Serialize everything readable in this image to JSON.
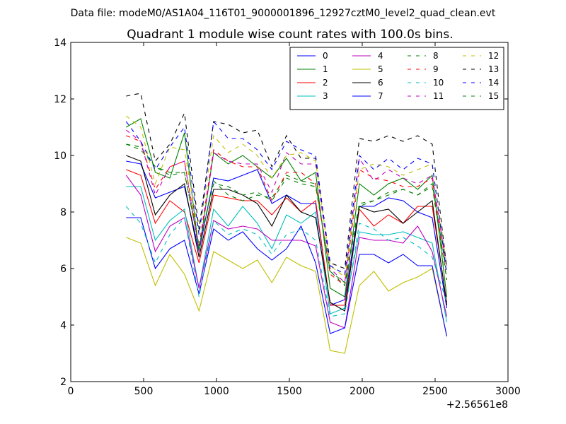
{
  "chart_data": {
    "type": "line",
    "suptitle": "Data file: modeM0/AS1A04_116T01_9000001896_12927cztM0_level2_quad_clean.evt",
    "title": "Quadrant 1 module wise count rates with 100.0s bins.",
    "xlabel": "",
    "ylabel": "",
    "x_offset_label": "+2.56561e8",
    "xlim": [
      0,
      3000
    ],
    "ylim": [
      2,
      14
    ],
    "x_ticks": [
      0,
      500,
      1000,
      1500,
      2000,
      2500,
      3000
    ],
    "y_ticks": [
      2,
      4,
      6,
      8,
      10,
      12,
      14
    ],
    "grid": false,
    "legend_placement": "upper-right",
    "legend_columns": 4,
    "x": [
      380,
      480,
      580,
      680,
      780,
      880,
      980,
      1080,
      1180,
      1280,
      1380,
      1480,
      1580,
      1680,
      1780,
      1880,
      1980,
      2080,
      2180,
      2280,
      2380,
      2480,
      2580
    ],
    "series": [
      {
        "name": "0",
        "color": "#0000ff",
        "dash": false,
        "values": [
          9.8,
          9.7,
          8.5,
          8.7,
          8.9,
          6.6,
          9.2,
          9.1,
          9.3,
          9.5,
          8.3,
          8.6,
          8.3,
          8.3,
          4.7,
          4.9,
          8.2,
          8.2,
          8.5,
          8.4,
          8.0,
          7.8,
          4.6
        ]
      },
      {
        "name": "1",
        "color": "#008000",
        "dash": false,
        "values": [
          11.0,
          11.3,
          9.4,
          9.2,
          10.8,
          6.6,
          10.1,
          9.7,
          10.0,
          9.6,
          9.2,
          9.9,
          9.1,
          9.4,
          5.3,
          5.0,
          9.0,
          8.6,
          9.0,
          9.2,
          8.8,
          9.3,
          5.0
        ]
      },
      {
        "name": "2",
        "color": "#ff0000",
        "dash": false,
        "values": [
          9.5,
          9.3,
          7.6,
          8.4,
          8.0,
          6.2,
          8.6,
          8.5,
          8.4,
          8.4,
          7.9,
          8.5,
          8.0,
          8.4,
          4.7,
          4.7,
          8.1,
          7.5,
          7.9,
          7.6,
          8.2,
          8.2,
          4.8
        ]
      },
      {
        "name": "3",
        "color": "#00bfbf",
        "dash": false,
        "values": [
          8.9,
          8.9,
          7.0,
          7.7,
          8.1,
          5.3,
          8.1,
          7.5,
          8.2,
          7.6,
          6.7,
          7.9,
          7.6,
          8.0,
          4.4,
          4.6,
          7.3,
          7.2,
          7.2,
          7.3,
          7.1,
          6.9,
          4.1
        ]
      },
      {
        "name": "4",
        "color": "#bf00bf",
        "dash": false,
        "values": [
          9.3,
          8.6,
          6.6,
          7.5,
          7.8,
          5.3,
          7.7,
          7.4,
          7.5,
          7.4,
          7.0,
          7.0,
          7.0,
          6.8,
          4.1,
          3.9,
          7.1,
          7.0,
          7.0,
          6.9,
          7.5,
          6.6,
          4.3
        ]
      },
      {
        "name": "5",
        "color": "#bfbf00",
        "dash": false,
        "values": [
          7.1,
          6.9,
          5.4,
          6.5,
          5.8,
          4.5,
          6.6,
          6.3,
          6.0,
          6.3,
          5.5,
          6.4,
          6.1,
          5.9,
          3.1,
          3.0,
          5.4,
          5.9,
          5.2,
          5.5,
          5.7,
          6.0,
          3.6
        ]
      },
      {
        "name": "6",
        "color": "#000000",
        "dash": false,
        "values": [
          10.0,
          9.8,
          7.9,
          8.6,
          9.0,
          6.4,
          8.8,
          8.8,
          8.6,
          8.3,
          7.5,
          8.6,
          8.0,
          7.8,
          4.8,
          4.5,
          8.2,
          8.0,
          8.1,
          7.6,
          8.0,
          8.4,
          4.7
        ]
      },
      {
        "name": "7",
        "color": "#0000ff",
        "dash": false,
        "values": [
          7.8,
          7.8,
          6.0,
          6.7,
          7.0,
          5.1,
          7.4,
          7.0,
          7.3,
          6.7,
          6.3,
          6.7,
          7.5,
          6.2,
          3.7,
          3.9,
          6.5,
          6.5,
          6.2,
          6.5,
          6.1,
          6.1,
          3.6
        ]
      },
      {
        "name": "8",
        "color": "#008000",
        "dash": true,
        "values": [
          10.4,
          10.3,
          9.6,
          9.3,
          9.4,
          6.8,
          9.1,
          8.6,
          8.4,
          8.6,
          8.5,
          9.3,
          9.1,
          9.0,
          5.9,
          5.5,
          8.3,
          8.4,
          8.6,
          8.8,
          8.6,
          9.0,
          5.8
        ]
      },
      {
        "name": "9",
        "color": "#ff0000",
        "dash": true,
        "values": [
          10.7,
          10.5,
          8.8,
          9.6,
          9.8,
          6.8,
          10.2,
          9.8,
          9.6,
          9.6,
          8.4,
          9.4,
          9.4,
          9.0,
          5.8,
          5.4,
          9.5,
          9.2,
          9.1,
          8.9,
          8.9,
          9.2,
          5.6
        ]
      },
      {
        "name": "10",
        "color": "#00bfbf",
        "dash": true,
        "values": [
          8.2,
          7.6,
          6.2,
          7.2,
          7.8,
          5.0,
          7.7,
          7.2,
          7.4,
          7.2,
          6.5,
          7.2,
          7.4,
          7.0,
          4.3,
          4.4,
          7.6,
          7.4,
          7.0,
          7.1,
          6.8,
          6.4,
          4.8
        ]
      },
      {
        "name": "11",
        "color": "#bf00bf",
        "dash": true,
        "values": [
          10.9,
          10.5,
          8.6,
          9.6,
          9.8,
          6.6,
          10.1,
          9.8,
          9.7,
          9.7,
          8.7,
          10.1,
          9.7,
          9.7,
          6.0,
          5.5,
          9.9,
          9.1,
          9.5,
          9.2,
          9.0,
          9.3,
          6.0
        ]
      },
      {
        "name": "12",
        "color": "#bfbf00",
        "dash": true,
        "values": [
          11.4,
          11.0,
          9.0,
          10.3,
          10.2,
          7.2,
          10.7,
          10.1,
          10.4,
          10.0,
          9.2,
          10.0,
          10.1,
          9.8,
          6.1,
          5.7,
          9.5,
          9.7,
          9.6,
          9.3,
          9.5,
          9.7,
          6.1
        ]
      },
      {
        "name": "13",
        "color": "#000000",
        "dash": true,
        "values": [
          12.1,
          12.2,
          9.8,
          10.4,
          11.5,
          7.4,
          11.2,
          11.1,
          10.8,
          10.9,
          9.6,
          10.7,
          9.9,
          9.9,
          6.2,
          6.0,
          10.6,
          10.5,
          10.7,
          10.5,
          10.7,
          10.4,
          6.0
        ]
      },
      {
        "name": "14",
        "color": "#0000ff",
        "dash": true,
        "values": [
          11.2,
          10.5,
          9.5,
          10.3,
          11.0,
          7.2,
          11.2,
          10.6,
          10.6,
          10.2,
          9.5,
          10.5,
          10.2,
          10.0,
          6.1,
          5.8,
          10.0,
          9.5,
          9.9,
          9.5,
          9.9,
          9.7,
          5.8
        ]
      },
      {
        "name": "15",
        "color": "#008000",
        "dash": true,
        "values": [
          10.4,
          10.2,
          9.6,
          9.4,
          9.4,
          6.8,
          9.0,
          8.9,
          8.6,
          8.7,
          8.4,
          9.2,
          9.0,
          8.9,
          5.9,
          5.4,
          8.2,
          8.4,
          8.7,
          8.8,
          8.6,
          8.9,
          5.6
        ]
      }
    ]
  }
}
